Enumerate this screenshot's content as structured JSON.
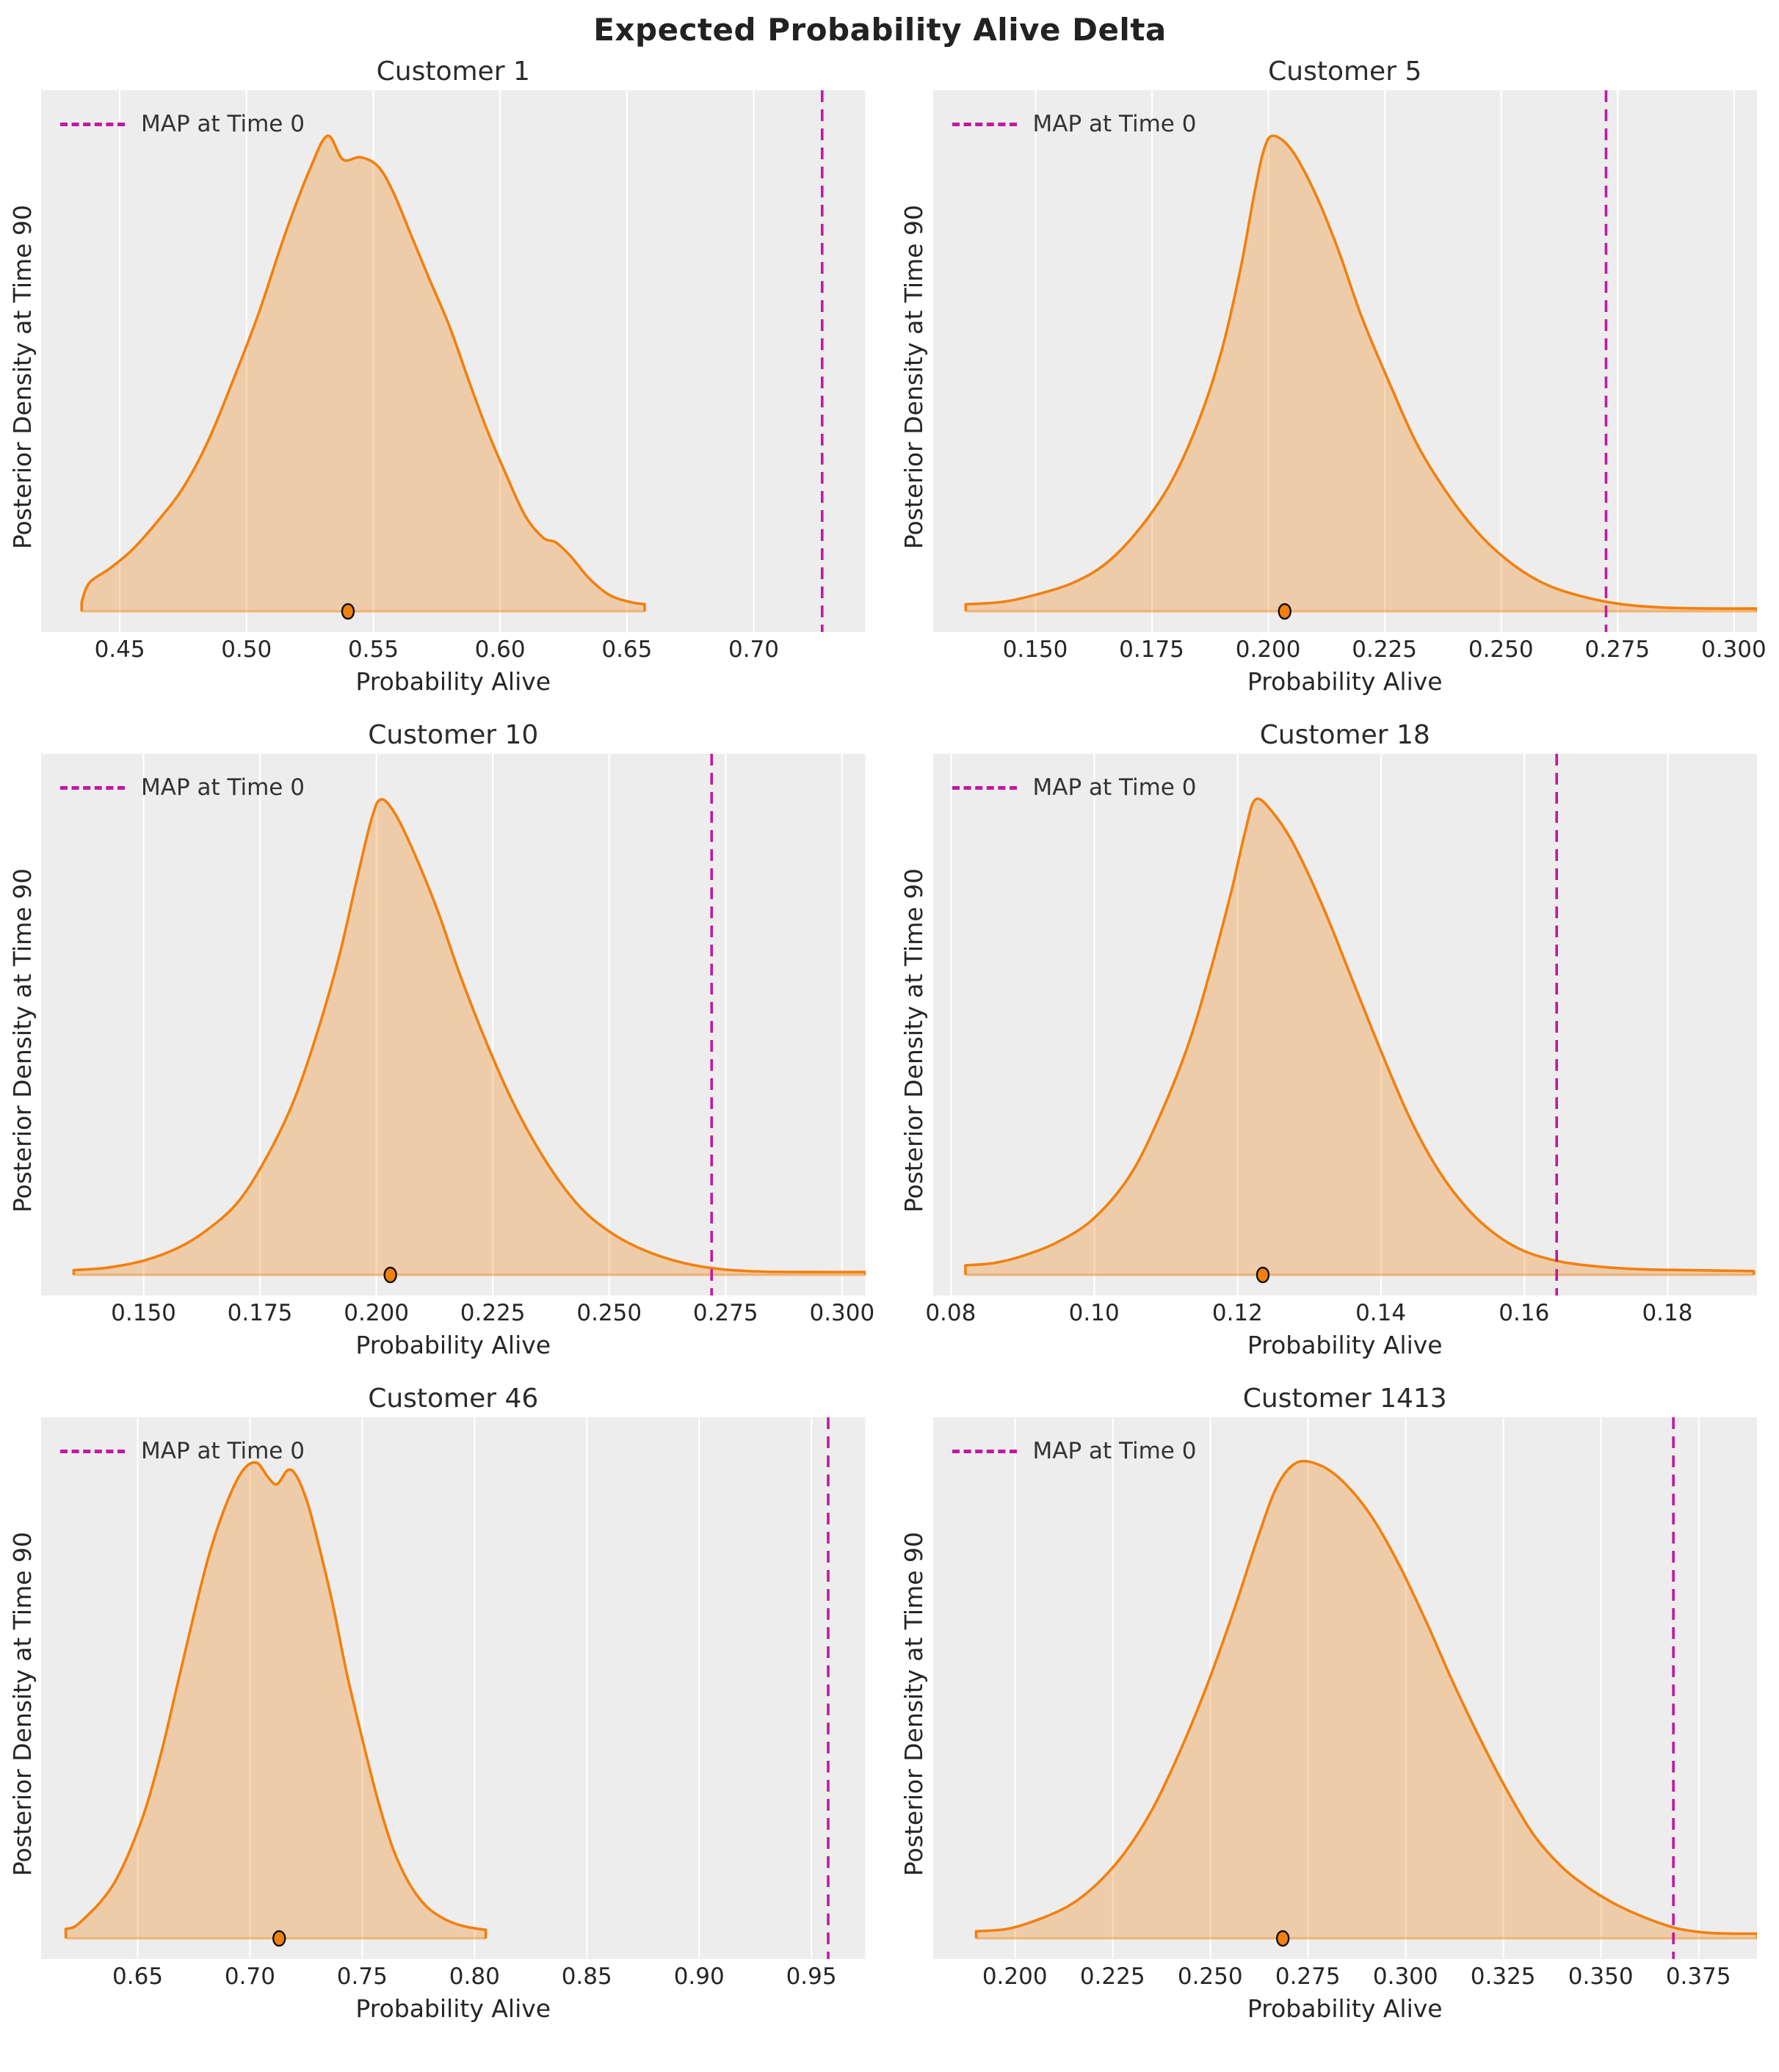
{
  "page": {
    "suptitle": "Expected Probability Alive Delta"
  },
  "colors": {
    "axes_background": "#EDEDED",
    "gridline": "#FFFFFF",
    "density_line": "#F2800E",
    "density_fill": "rgba(242,128,14,0.30)",
    "baseline": "rgba(242,128,14,0.45)",
    "map_line": "#C119A1",
    "marker_fill": "#F2800E",
    "marker_edge": "#111111",
    "text": "#262626"
  },
  "chart_data": [
    {
      "type": "area",
      "title": "Customer 1",
      "xlabel": "Probability Alive",
      "ylabel": "Posterior Density at Time 90",
      "legend_label": "MAP at Time 0",
      "xlim": [
        0.419,
        0.744
      ],
      "x_ticks": [
        0.45,
        0.5,
        0.55,
        0.6,
        0.65,
        0.7
      ],
      "x_tick_labels": [
        "0.45",
        "0.50",
        "0.55",
        "0.60",
        "0.65",
        "0.70"
      ],
      "map_at_time_0": 0.727,
      "posterior_map_marker": 0.54,
      "kde_curve": [
        [
          0.435,
          0.02
        ],
        [
          0.438,
          0.06
        ],
        [
          0.446,
          0.09
        ],
        [
          0.455,
          0.13
        ],
        [
          0.465,
          0.19
        ],
        [
          0.475,
          0.26
        ],
        [
          0.485,
          0.36
        ],
        [
          0.495,
          0.49
        ],
        [
          0.505,
          0.63
        ],
        [
          0.515,
          0.79
        ],
        [
          0.525,
          0.93
        ],
        [
          0.532,
          1.0
        ],
        [
          0.538,
          0.95
        ],
        [
          0.545,
          0.955
        ],
        [
          0.552,
          0.935
        ],
        [
          0.558,
          0.88
        ],
        [
          0.565,
          0.79
        ],
        [
          0.572,
          0.7
        ],
        [
          0.58,
          0.6
        ],
        [
          0.588,
          0.48
        ],
        [
          0.595,
          0.38
        ],
        [
          0.603,
          0.28
        ],
        [
          0.61,
          0.2
        ],
        [
          0.617,
          0.155
        ],
        [
          0.622,
          0.145
        ],
        [
          0.628,
          0.115
        ],
        [
          0.635,
          0.07
        ],
        [
          0.643,
          0.035
        ],
        [
          0.651,
          0.02
        ],
        [
          0.657,
          0.015
        ]
      ]
    },
    {
      "type": "area",
      "title": "Customer 5",
      "xlabel": "Probability Alive",
      "ylabel": "Posterior Density at Time 90",
      "legend_label": "MAP at Time 0",
      "xlim": [
        0.128,
        0.305
      ],
      "x_ticks": [
        0.15,
        0.175,
        0.2,
        0.225,
        0.25,
        0.275,
        0.3
      ],
      "x_tick_labels": [
        "0.150",
        "0.175",
        "0.200",
        "0.225",
        "0.250",
        "0.275",
        "0.300"
      ],
      "map_at_time_0": 0.2725,
      "posterior_map_marker": 0.2035,
      "kde_curve": [
        [
          0.135,
          0.015
        ],
        [
          0.143,
          0.02
        ],
        [
          0.15,
          0.035
        ],
        [
          0.158,
          0.06
        ],
        [
          0.165,
          0.1
        ],
        [
          0.172,
          0.17
        ],
        [
          0.179,
          0.27
        ],
        [
          0.185,
          0.4
        ],
        [
          0.19,
          0.55
        ],
        [
          0.194,
          0.72
        ],
        [
          0.197,
          0.88
        ],
        [
          0.199,
          0.97
        ],
        [
          0.201,
          1.0
        ],
        [
          0.205,
          0.97
        ],
        [
          0.21,
          0.88
        ],
        [
          0.215,
          0.76
        ],
        [
          0.22,
          0.62
        ],
        [
          0.226,
          0.48
        ],
        [
          0.232,
          0.35
        ],
        [
          0.239,
          0.24
        ],
        [
          0.246,
          0.155
        ],
        [
          0.253,
          0.095
        ],
        [
          0.26,
          0.055
        ],
        [
          0.268,
          0.03
        ],
        [
          0.276,
          0.015
        ],
        [
          0.285,
          0.008
        ],
        [
          0.295,
          0.006
        ],
        [
          0.305,
          0.006
        ]
      ]
    },
    {
      "type": "area",
      "title": "Customer 10",
      "xlabel": "Probability Alive",
      "ylabel": "Posterior Density at Time 90",
      "legend_label": "MAP at Time 0",
      "xlim": [
        0.128,
        0.305
      ],
      "x_ticks": [
        0.15,
        0.175,
        0.2,
        0.225,
        0.25,
        0.275,
        0.3
      ],
      "x_tick_labels": [
        "0.150",
        "0.175",
        "0.200",
        "0.225",
        "0.250",
        "0.275",
        "0.300"
      ],
      "map_at_time_0": 0.272,
      "posterior_map_marker": 0.203,
      "kde_curve": [
        [
          0.135,
          0.01
        ],
        [
          0.142,
          0.015
        ],
        [
          0.15,
          0.03
        ],
        [
          0.157,
          0.055
        ],
        [
          0.163,
          0.09
        ],
        [
          0.17,
          0.15
        ],
        [
          0.176,
          0.24
        ],
        [
          0.182,
          0.36
        ],
        [
          0.187,
          0.5
        ],
        [
          0.192,
          0.67
        ],
        [
          0.196,
          0.84
        ],
        [
          0.199,
          0.96
        ],
        [
          0.201,
          1.0
        ],
        [
          0.204,
          0.97
        ],
        [
          0.208,
          0.89
        ],
        [
          0.213,
          0.77
        ],
        [
          0.218,
          0.63
        ],
        [
          0.224,
          0.48
        ],
        [
          0.23,
          0.35
        ],
        [
          0.237,
          0.23
        ],
        [
          0.244,
          0.14
        ],
        [
          0.251,
          0.085
        ],
        [
          0.258,
          0.05
        ],
        [
          0.266,
          0.025
        ],
        [
          0.274,
          0.012
        ],
        [
          0.283,
          0.007
        ],
        [
          0.295,
          0.006
        ],
        [
          0.305,
          0.006
        ]
      ]
    },
    {
      "type": "area",
      "title": "Customer 18",
      "xlabel": "Probability Alive",
      "ylabel": "Posterior Density at Time 90",
      "legend_label": "MAP at Time 0",
      "xlim": [
        0.0775,
        0.1925
      ],
      "x_ticks": [
        0.08,
        0.1,
        0.12,
        0.14,
        0.16,
        0.18
      ],
      "x_tick_labels": [
        "0.08",
        "0.10",
        "0.12",
        "0.14",
        "0.16",
        "0.18"
      ],
      "map_at_time_0": 0.1645,
      "posterior_map_marker": 0.1235,
      "kde_curve": [
        [
          0.082,
          0.02
        ],
        [
          0.086,
          0.025
        ],
        [
          0.09,
          0.04
        ],
        [
          0.095,
          0.07
        ],
        [
          0.1,
          0.12
        ],
        [
          0.105,
          0.21
        ],
        [
          0.109,
          0.33
        ],
        [
          0.113,
          0.48
        ],
        [
          0.116,
          0.63
        ],
        [
          0.119,
          0.8
        ],
        [
          0.121,
          0.93
        ],
        [
          0.1225,
          1.0
        ],
        [
          0.125,
          0.97
        ],
        [
          0.128,
          0.9
        ],
        [
          0.132,
          0.77
        ],
        [
          0.136,
          0.62
        ],
        [
          0.14,
          0.47
        ],
        [
          0.144,
          0.33
        ],
        [
          0.148,
          0.22
        ],
        [
          0.152,
          0.14
        ],
        [
          0.156,
          0.085
        ],
        [
          0.16,
          0.05
        ],
        [
          0.165,
          0.028
        ],
        [
          0.17,
          0.018
        ],
        [
          0.176,
          0.012
        ],
        [
          0.183,
          0.01
        ],
        [
          0.192,
          0.008
        ]
      ]
    },
    {
      "type": "area",
      "title": "Customer 46",
      "xlabel": "Probability Alive",
      "ylabel": "Posterior Density at Time 90",
      "legend_label": "MAP at Time 0",
      "xlim": [
        0.607,
        0.974
      ],
      "x_ticks": [
        0.65,
        0.7,
        0.75,
        0.8,
        0.85,
        0.9,
        0.95
      ],
      "x_tick_labels": [
        "0.65",
        "0.70",
        "0.75",
        "0.80",
        "0.85",
        "0.90",
        "0.95"
      ],
      "map_at_time_0": 0.9575,
      "posterior_map_marker": 0.713,
      "kde_curve": [
        [
          0.618,
          0.02
        ],
        [
          0.622,
          0.025
        ],
        [
          0.628,
          0.05
        ],
        [
          0.634,
          0.08
        ],
        [
          0.64,
          0.12
        ],
        [
          0.647,
          0.19
        ],
        [
          0.654,
          0.28
        ],
        [
          0.661,
          0.4
        ],
        [
          0.668,
          0.54
        ],
        [
          0.675,
          0.68
        ],
        [
          0.682,
          0.81
        ],
        [
          0.69,
          0.92
        ],
        [
          0.697,
          0.985
        ],
        [
          0.703,
          1.0
        ],
        [
          0.708,
          0.97
        ],
        [
          0.712,
          0.955
        ],
        [
          0.717,
          0.985
        ],
        [
          0.721,
          0.97
        ],
        [
          0.726,
          0.91
        ],
        [
          0.731,
          0.82
        ],
        [
          0.737,
          0.7
        ],
        [
          0.743,
          0.56
        ],
        [
          0.75,
          0.42
        ],
        [
          0.757,
          0.29
        ],
        [
          0.764,
          0.185
        ],
        [
          0.771,
          0.115
        ],
        [
          0.778,
          0.07
        ],
        [
          0.785,
          0.045
        ],
        [
          0.792,
          0.03
        ],
        [
          0.799,
          0.022
        ],
        [
          0.805,
          0.018
        ]
      ]
    },
    {
      "type": "area",
      "title": "Customer 1413",
      "xlabel": "Probability Alive",
      "ylabel": "Posterior Density at Time 90",
      "legend_label": "MAP at Time 0",
      "xlim": [
        0.179,
        0.39
      ],
      "x_ticks": [
        0.2,
        0.225,
        0.25,
        0.275,
        0.3,
        0.325,
        0.35,
        0.375
      ],
      "x_tick_labels": [
        "0.200",
        "0.225",
        "0.250",
        "0.275",
        "0.300",
        "0.325",
        "0.350",
        "0.375"
      ],
      "map_at_time_0": 0.3685,
      "posterior_map_marker": 0.2685,
      "kde_curve": [
        [
          0.19,
          0.015
        ],
        [
          0.198,
          0.02
        ],
        [
          0.206,
          0.04
        ],
        [
          0.214,
          0.07
        ],
        [
          0.221,
          0.115
        ],
        [
          0.228,
          0.18
        ],
        [
          0.235,
          0.27
        ],
        [
          0.242,
          0.39
        ],
        [
          0.249,
          0.53
        ],
        [
          0.256,
          0.69
        ],
        [
          0.262,
          0.84
        ],
        [
          0.267,
          0.95
        ],
        [
          0.272,
          1.0
        ],
        [
          0.278,
          0.995
        ],
        [
          0.284,
          0.96
        ],
        [
          0.291,
          0.89
        ],
        [
          0.298,
          0.79
        ],
        [
          0.305,
          0.67
        ],
        [
          0.312,
          0.54
        ],
        [
          0.319,
          0.42
        ],
        [
          0.326,
          0.31
        ],
        [
          0.333,
          0.215
        ],
        [
          0.34,
          0.15
        ],
        [
          0.347,
          0.105
        ],
        [
          0.353,
          0.075
        ],
        [
          0.358,
          0.055
        ],
        [
          0.364,
          0.035
        ],
        [
          0.37,
          0.02
        ],
        [
          0.377,
          0.012
        ],
        [
          0.384,
          0.01
        ],
        [
          0.39,
          0.01
        ]
      ]
    }
  ]
}
